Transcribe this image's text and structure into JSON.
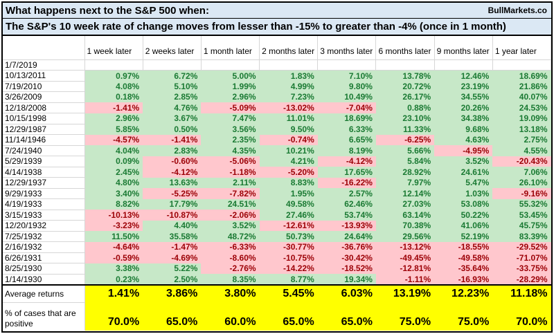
{
  "title": {
    "line1": "What happens next to the S&P 500 when:",
    "brand": "BullMarkets.co",
    "line2": "The S&P's 10 week rate of change moves from lesser than -15% to greater than -4% (once in 1 month)"
  },
  "table": {
    "date_column_header": "",
    "columns": [
      "1 week later",
      "2 weeks later",
      "1 month later",
      "2 months later",
      "3 months later",
      "6 months later",
      "9 months later",
      "1 year later"
    ],
    "rows": [
      {
        "date": "1/7/2019",
        "values": [
          "",
          "",
          "",
          "",
          "",
          "",
          "",
          ""
        ]
      },
      {
        "date": "10/13/2011",
        "values": [
          "0.97%",
          "6.72%",
          "5.00%",
          "1.83%",
          "7.10%",
          "13.78%",
          "12.46%",
          "18.69%"
        ]
      },
      {
        "date": "7/19/2010",
        "values": [
          "4.08%",
          "5.10%",
          "1.99%",
          "4.99%",
          "9.80%",
          "20.72%",
          "23.19%",
          "21.86%"
        ]
      },
      {
        "date": "3/26/2009",
        "values": [
          "0.18%",
          "2.85%",
          "2.96%",
          "7.23%",
          "10.49%",
          "26.17%",
          "34.55%",
          "40.07%"
        ]
      },
      {
        "date": "12/18/2008",
        "values": [
          "-1.41%",
          "4.76%",
          "-5.09%",
          "-13.02%",
          "-7.04%",
          "0.88%",
          "20.26%",
          "24.53%"
        ]
      },
      {
        "date": "10/15/1998",
        "values": [
          "2.96%",
          "3.67%",
          "7.47%",
          "11.01%",
          "18.69%",
          "23.10%",
          "34.38%",
          "19.09%"
        ]
      },
      {
        "date": "12/29/1987",
        "values": [
          "5.85%",
          "0.50%",
          "3.56%",
          "9.50%",
          "6.33%",
          "11.33%",
          "9.68%",
          "13.18%"
        ]
      },
      {
        "date": "11/14/1946",
        "values": [
          "-4.57%",
          "-1.41%",
          "2.35%",
          "-0.74%",
          "6.65%",
          "-6.25%",
          "4.63%",
          "2.75%"
        ]
      },
      {
        "date": "7/24/1940",
        "values": [
          "4.04%",
          "2.83%",
          "4.35%",
          "10.21%",
          "8.19%",
          "5.66%",
          "-4.95%",
          "4.55%"
        ]
      },
      {
        "date": "5/29/1939",
        "values": [
          "0.09%",
          "-0.60%",
          "-5.06%",
          "4.21%",
          "-4.12%",
          "5.84%",
          "3.52%",
          "-20.43%"
        ]
      },
      {
        "date": "4/14/1938",
        "values": [
          "2.45%",
          "-4.12%",
          "-1.18%",
          "-5.20%",
          "17.65%",
          "28.92%",
          "24.61%",
          "7.06%"
        ]
      },
      {
        "date": "12/29/1937",
        "values": [
          "4.80%",
          "13.63%",
          "2.11%",
          "8.83%",
          "-16.22%",
          "7.97%",
          "5.47%",
          "26.10%"
        ]
      },
      {
        "date": "9/29/1933",
        "values": [
          "3.40%",
          "-5.25%",
          "-7.82%",
          "1.95%",
          "2.57%",
          "12.14%",
          "1.03%",
          "-9.16%"
        ]
      },
      {
        "date": "4/19/1933",
        "values": [
          "8.82%",
          "17.79%",
          "24.51%",
          "49.58%",
          "62.46%",
          "27.03%",
          "53.08%",
          "55.32%"
        ]
      },
      {
        "date": "3/15/1933",
        "values": [
          "-10.13%",
          "-10.87%",
          "-2.06%",
          "27.46%",
          "53.74%",
          "63.14%",
          "50.22%",
          "53.45%"
        ]
      },
      {
        "date": "12/20/1932",
        "values": [
          "-3.23%",
          "4.40%",
          "3.52%",
          "-12.61%",
          "-13.93%",
          "70.38%",
          "41.06%",
          "45.75%"
        ]
      },
      {
        "date": "7/25/1932",
        "values": [
          "11.50%",
          "35.58%",
          "48.72%",
          "50.73%",
          "24.64%",
          "29.56%",
          "52.19%",
          "83.39%"
        ]
      },
      {
        "date": "2/16/1932",
        "values": [
          "-4.64%",
          "-1.47%",
          "-6.33%",
          "-30.77%",
          "-36.76%",
          "-13.12%",
          "-18.55%",
          "-29.52%"
        ]
      },
      {
        "date": "6/26/1931",
        "values": [
          "-0.59%",
          "-4.69%",
          "-8.60%",
          "-10.75%",
          "-30.42%",
          "-49.45%",
          "-49.58%",
          "-71.07%"
        ]
      },
      {
        "date": "8/25/1930",
        "values": [
          "3.38%",
          "5.22%",
          "-2.76%",
          "-14.22%",
          "-18.52%",
          "-12.81%",
          "-35.64%",
          "-33.75%"
        ]
      },
      {
        "date": "1/14/1930",
        "values": [
          "0.23%",
          "2.50%",
          "8.35%",
          "8.77%",
          "19.34%",
          "-1.11%",
          "-16.93%",
          "-28.29%"
        ]
      }
    ],
    "summary": {
      "average_label": "Average returns",
      "average_values": [
        "1.41%",
        "3.86%",
        "3.80%",
        "5.45%",
        "6.03%",
        "13.19%",
        "12.23%",
        "11.18%"
      ],
      "positive_label": "% of cases that are positive",
      "positive_values": [
        "70.0%",
        "65.0%",
        "60.0%",
        "65.0%",
        "65.0%",
        "75.0%",
        "75.0%",
        "70.0%"
      ]
    }
  },
  "colors": {
    "positive_bg": "#c7e8c8",
    "positive_text": "#1a7a33",
    "negative_bg": "#ffc7cd",
    "negative_text": "#9c0006",
    "summary_bg": "#ffff00",
    "title_bg": "#dbe8f4",
    "gridline": "#d6d6d6",
    "border": "#000000"
  }
}
